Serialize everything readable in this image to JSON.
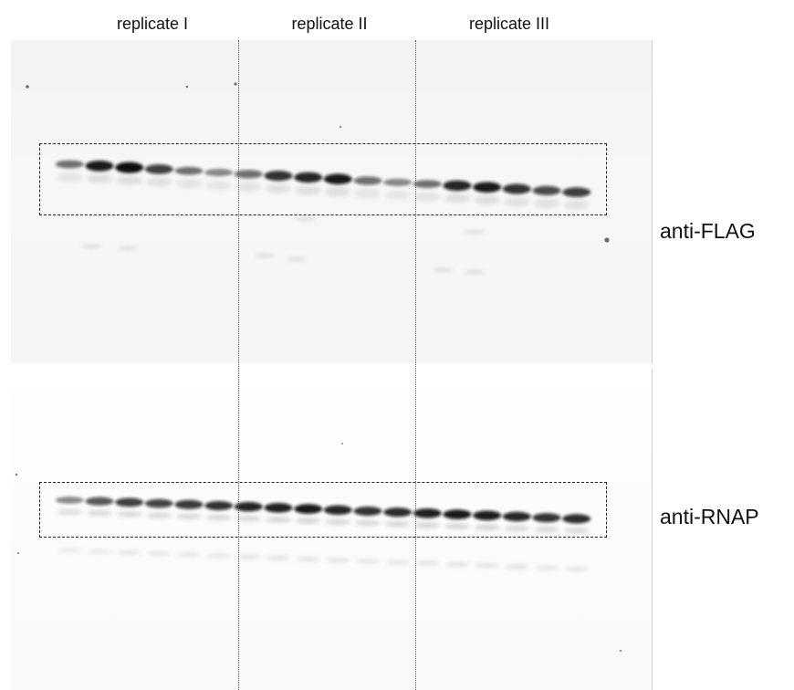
{
  "replicates": [
    {
      "label": "replicate I"
    },
    {
      "label": "replicate II"
    },
    {
      "label": "replicate III"
    }
  ],
  "blots": [
    {
      "label": "anti-FLAG"
    },
    {
      "label": "anti-RNAP"
    }
  ],
  "colors": {
    "band": "#0b0b0b",
    "panel_background": "#f5f5f5",
    "divider": "#555555",
    "roi_box": "#222222"
  },
  "lanes": {
    "count": 18,
    "flag_intensity": [
      0.55,
      0.95,
      1.0,
      0.8,
      0.55,
      0.45,
      0.6,
      0.85,
      0.9,
      0.95,
      0.6,
      0.45,
      0.55,
      0.9,
      0.95,
      0.85,
      0.75,
      0.8
    ],
    "rnap_intensity": [
      0.45,
      0.7,
      0.8,
      0.78,
      0.82,
      0.85,
      0.9,
      0.92,
      0.95,
      0.9,
      0.85,
      0.88,
      0.92,
      0.95,
      0.93,
      0.9,
      0.85,
      0.88
    ]
  }
}
